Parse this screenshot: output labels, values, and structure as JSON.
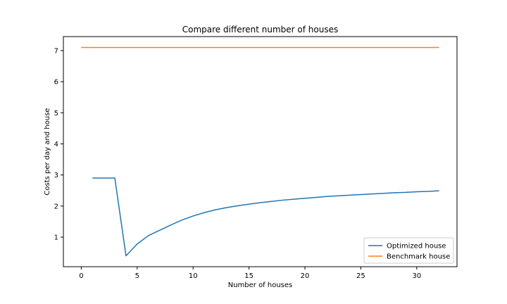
{
  "chart_data": {
    "type": "line",
    "title": "Compare different number of houses",
    "xlabel": "Number of houses",
    "ylabel": "Costs per day and house",
    "xlim": [
      -1.6,
      33.6
    ],
    "ylim": [
      0.05,
      7.45
    ],
    "xticks": [
      0,
      5,
      10,
      15,
      20,
      25,
      30
    ],
    "yticks": [
      1,
      2,
      3,
      4,
      5,
      6,
      7
    ],
    "grid": false,
    "legend_position": "lower-right",
    "series": [
      {
        "name": "Optimized house",
        "color": "#1f77b4",
        "x": [
          1,
          2,
          3,
          4,
          5,
          6,
          7,
          8,
          9,
          10,
          11,
          12,
          13,
          14,
          15,
          16,
          17,
          18,
          19,
          20,
          21,
          22,
          23,
          24,
          25,
          26,
          27,
          28,
          29,
          30,
          31,
          32
        ],
        "y": [
          2.9,
          2.9,
          2.9,
          0.4,
          0.78,
          1.05,
          1.22,
          1.39,
          1.55,
          1.68,
          1.79,
          1.88,
          1.95,
          2.01,
          2.06,
          2.11,
          2.15,
          2.19,
          2.22,
          2.25,
          2.28,
          2.31,
          2.33,
          2.35,
          2.37,
          2.39,
          2.41,
          2.43,
          2.44,
          2.46,
          2.47,
          2.49
        ]
      },
      {
        "name": "Benchmark house",
        "color": "#ff7f0e",
        "x": [
          0,
          32
        ],
        "y": [
          7.1,
          7.1
        ]
      }
    ]
  }
}
